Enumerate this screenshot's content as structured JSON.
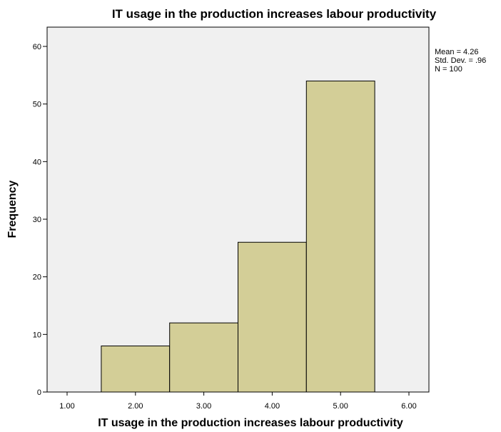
{
  "chart_data": {
    "type": "bar",
    "title": "IT usage in the production increases labour productivity",
    "xlabel": "IT usage in the production increases labour productivity",
    "ylabel": "Frequency",
    "categories": [
      "2.00",
      "3.00",
      "4.00",
      "5.00"
    ],
    "x": [
      2,
      3,
      4,
      5
    ],
    "values": [
      8,
      12,
      26,
      54
    ],
    "bin_width": 1,
    "xlim": [
      1,
      6
    ],
    "ylim": [
      0,
      60
    ],
    "x_ticks": [
      "1.00",
      "2.00",
      "3.00",
      "4.00",
      "5.00",
      "6.00"
    ],
    "y_ticks": [
      "0",
      "10",
      "20",
      "30",
      "40",
      "50",
      "60"
    ],
    "grid": false,
    "legend": "none",
    "bar_color": "#d3ce97",
    "plot_background": "#f0f0f0",
    "stats": [
      "Mean = 4.26",
      "Std. Dev. = .96",
      "N = 100"
    ]
  }
}
